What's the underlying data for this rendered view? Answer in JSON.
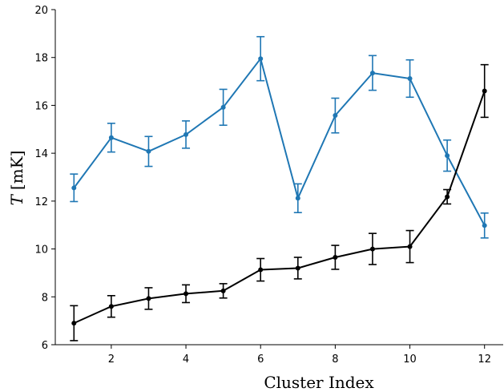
{
  "chart_data": {
    "type": "line",
    "xlabel": "Cluster Index",
    "ylabel_symbol": "T",
    "ylabel_unit": "[mK]",
    "xlim": [
      0.5,
      12.5
    ],
    "ylim": [
      6,
      20
    ],
    "xticks": [
      2,
      4,
      6,
      8,
      10,
      12
    ],
    "yticks": [
      6,
      8,
      10,
      12,
      14,
      16,
      18,
      20
    ],
    "grid": false,
    "x": [
      1,
      2,
      3,
      4,
      5,
      6,
      7,
      8,
      9,
      10,
      11,
      12
    ],
    "series": [
      {
        "color": "#1f77b4",
        "values": [
          12.55,
          14.65,
          14.08,
          14.78,
          15.92,
          17.95,
          12.12,
          15.58,
          17.35,
          17.12,
          13.9,
          10.98
        ],
        "err_low": [
          0.57,
          0.6,
          0.63,
          0.57,
          0.75,
          0.92,
          0.6,
          0.73,
          0.72,
          0.78,
          0.65,
          0.52
        ],
        "err_high": [
          0.58,
          0.6,
          0.62,
          0.57,
          0.75,
          0.92,
          0.6,
          0.72,
          0.73,
          0.78,
          0.65,
          0.52
        ]
      },
      {
        "color": "#000000",
        "values": [
          6.9,
          7.6,
          7.93,
          8.13,
          8.25,
          9.13,
          9.2,
          9.65,
          10.0,
          10.1,
          12.18,
          16.6
        ],
        "err_low": [
          0.73,
          0.45,
          0.45,
          0.37,
          0.3,
          0.47,
          0.45,
          0.5,
          0.65,
          0.67,
          0.3,
          1.1
        ],
        "err_high": [
          0.73,
          0.45,
          0.45,
          0.37,
          0.3,
          0.47,
          0.45,
          0.5,
          0.65,
          0.67,
          0.3,
          1.1
        ]
      }
    ]
  }
}
